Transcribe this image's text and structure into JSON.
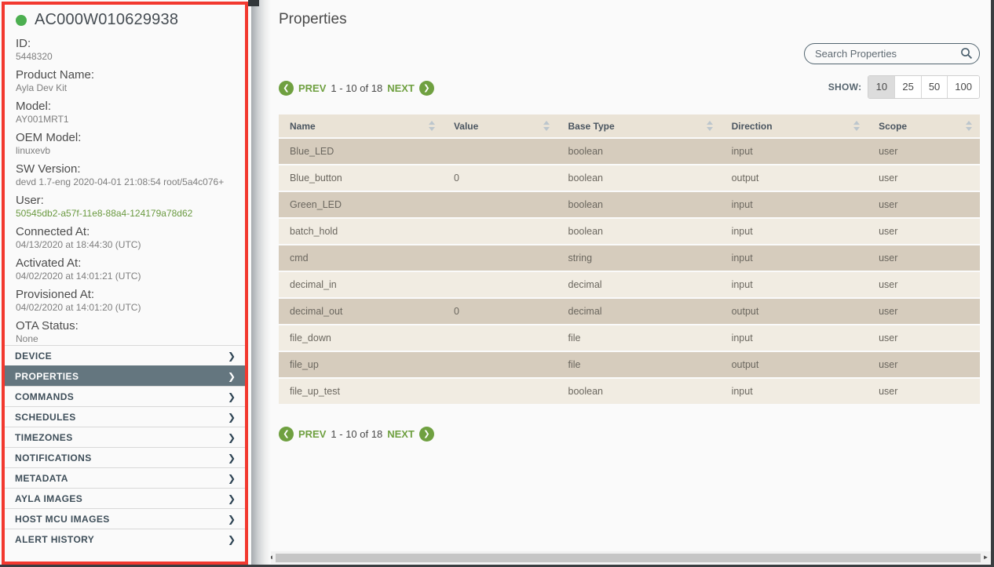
{
  "colors": {
    "annotation_red": "#f2392f",
    "status_green": "#4caf50",
    "accent_green": "#6fa040",
    "link_green": "#6b9a41",
    "active_nav": "#64767f",
    "header_beige": "#eae3d6",
    "row_dark": "#d6ccbd",
    "row_light": "#f1ece2"
  },
  "device_panel": {
    "title": "AC000W010629938",
    "fields": [
      {
        "label": "ID:",
        "value": "5448320",
        "link": false
      },
      {
        "label": "Product Name:",
        "value": "Ayla Dev Kit",
        "link": false
      },
      {
        "label": "Model:",
        "value": "AY001MRT1",
        "link": false
      },
      {
        "label": "OEM Model:",
        "value": "linuxevb",
        "link": false
      },
      {
        "label": "SW Version:",
        "value": "devd 1.7-eng 2020-04-01 21:08:54 root/5a4c076+",
        "link": false
      },
      {
        "label": "User:",
        "value": "50545db2-a57f-11e8-88a4-124179a78d62",
        "link": true
      },
      {
        "label": "Connected At:",
        "value": "04/13/2020 at 18:44:30 (UTC)",
        "link": false
      },
      {
        "label": "Activated At:",
        "value": "04/02/2020 at 14:01:21 (UTC)",
        "link": false
      },
      {
        "label": "Provisioned At:",
        "value": "04/02/2020 at 14:01:20 (UTC)",
        "link": false
      },
      {
        "label": "OTA Status:",
        "value": "None",
        "link": false
      }
    ],
    "menu": [
      {
        "label": "DEVICE",
        "active": false
      },
      {
        "label": "PROPERTIES",
        "active": true
      },
      {
        "label": "COMMANDS",
        "active": false
      },
      {
        "label": "SCHEDULES",
        "active": false
      },
      {
        "label": "TIMEZONES",
        "active": false
      },
      {
        "label": "NOTIFICATIONS",
        "active": false
      },
      {
        "label": "METADATA",
        "active": false
      },
      {
        "label": "AYLA IMAGES",
        "active": false
      },
      {
        "label": "HOST MCU IMAGES",
        "active": false
      },
      {
        "label": "ALERT HISTORY",
        "active": false
      }
    ]
  },
  "main": {
    "title": "Properties",
    "search_placeholder": "Search Properties",
    "pagination": {
      "prev": "PREV",
      "range": "1 - 10 of 18",
      "next": "NEXT"
    },
    "show": {
      "label": "SHOW:",
      "options": [
        "10",
        "25",
        "50",
        "100"
      ],
      "selected": "10"
    },
    "table": {
      "columns": [
        "Name",
        "Value",
        "Base Type",
        "Direction",
        "Scope"
      ],
      "column_widths_pct": [
        23.4,
        16.3,
        23.3,
        21.0,
        16.0
      ],
      "rows": [
        {
          "name": "Blue_LED",
          "value": "",
          "base_type": "boolean",
          "direction": "input",
          "scope": "user"
        },
        {
          "name": "Blue_button",
          "value": "0",
          "base_type": "boolean",
          "direction": "output",
          "scope": "user"
        },
        {
          "name": "Green_LED",
          "value": "",
          "base_type": "boolean",
          "direction": "input",
          "scope": "user"
        },
        {
          "name": "batch_hold",
          "value": "",
          "base_type": "boolean",
          "direction": "input",
          "scope": "user"
        },
        {
          "name": "cmd",
          "value": "",
          "base_type": "string",
          "direction": "input",
          "scope": "user"
        },
        {
          "name": "decimal_in",
          "value": "",
          "base_type": "decimal",
          "direction": "input",
          "scope": "user"
        },
        {
          "name": "decimal_out",
          "value": "0",
          "base_type": "decimal",
          "direction": "output",
          "scope": "user"
        },
        {
          "name": "file_down",
          "value": "",
          "base_type": "file",
          "direction": "input",
          "scope": "user"
        },
        {
          "name": "file_up",
          "value": "",
          "base_type": "file",
          "direction": "output",
          "scope": "user"
        },
        {
          "name": "file_up_test",
          "value": "",
          "base_type": "boolean",
          "direction": "input",
          "scope": "user"
        }
      ]
    }
  }
}
